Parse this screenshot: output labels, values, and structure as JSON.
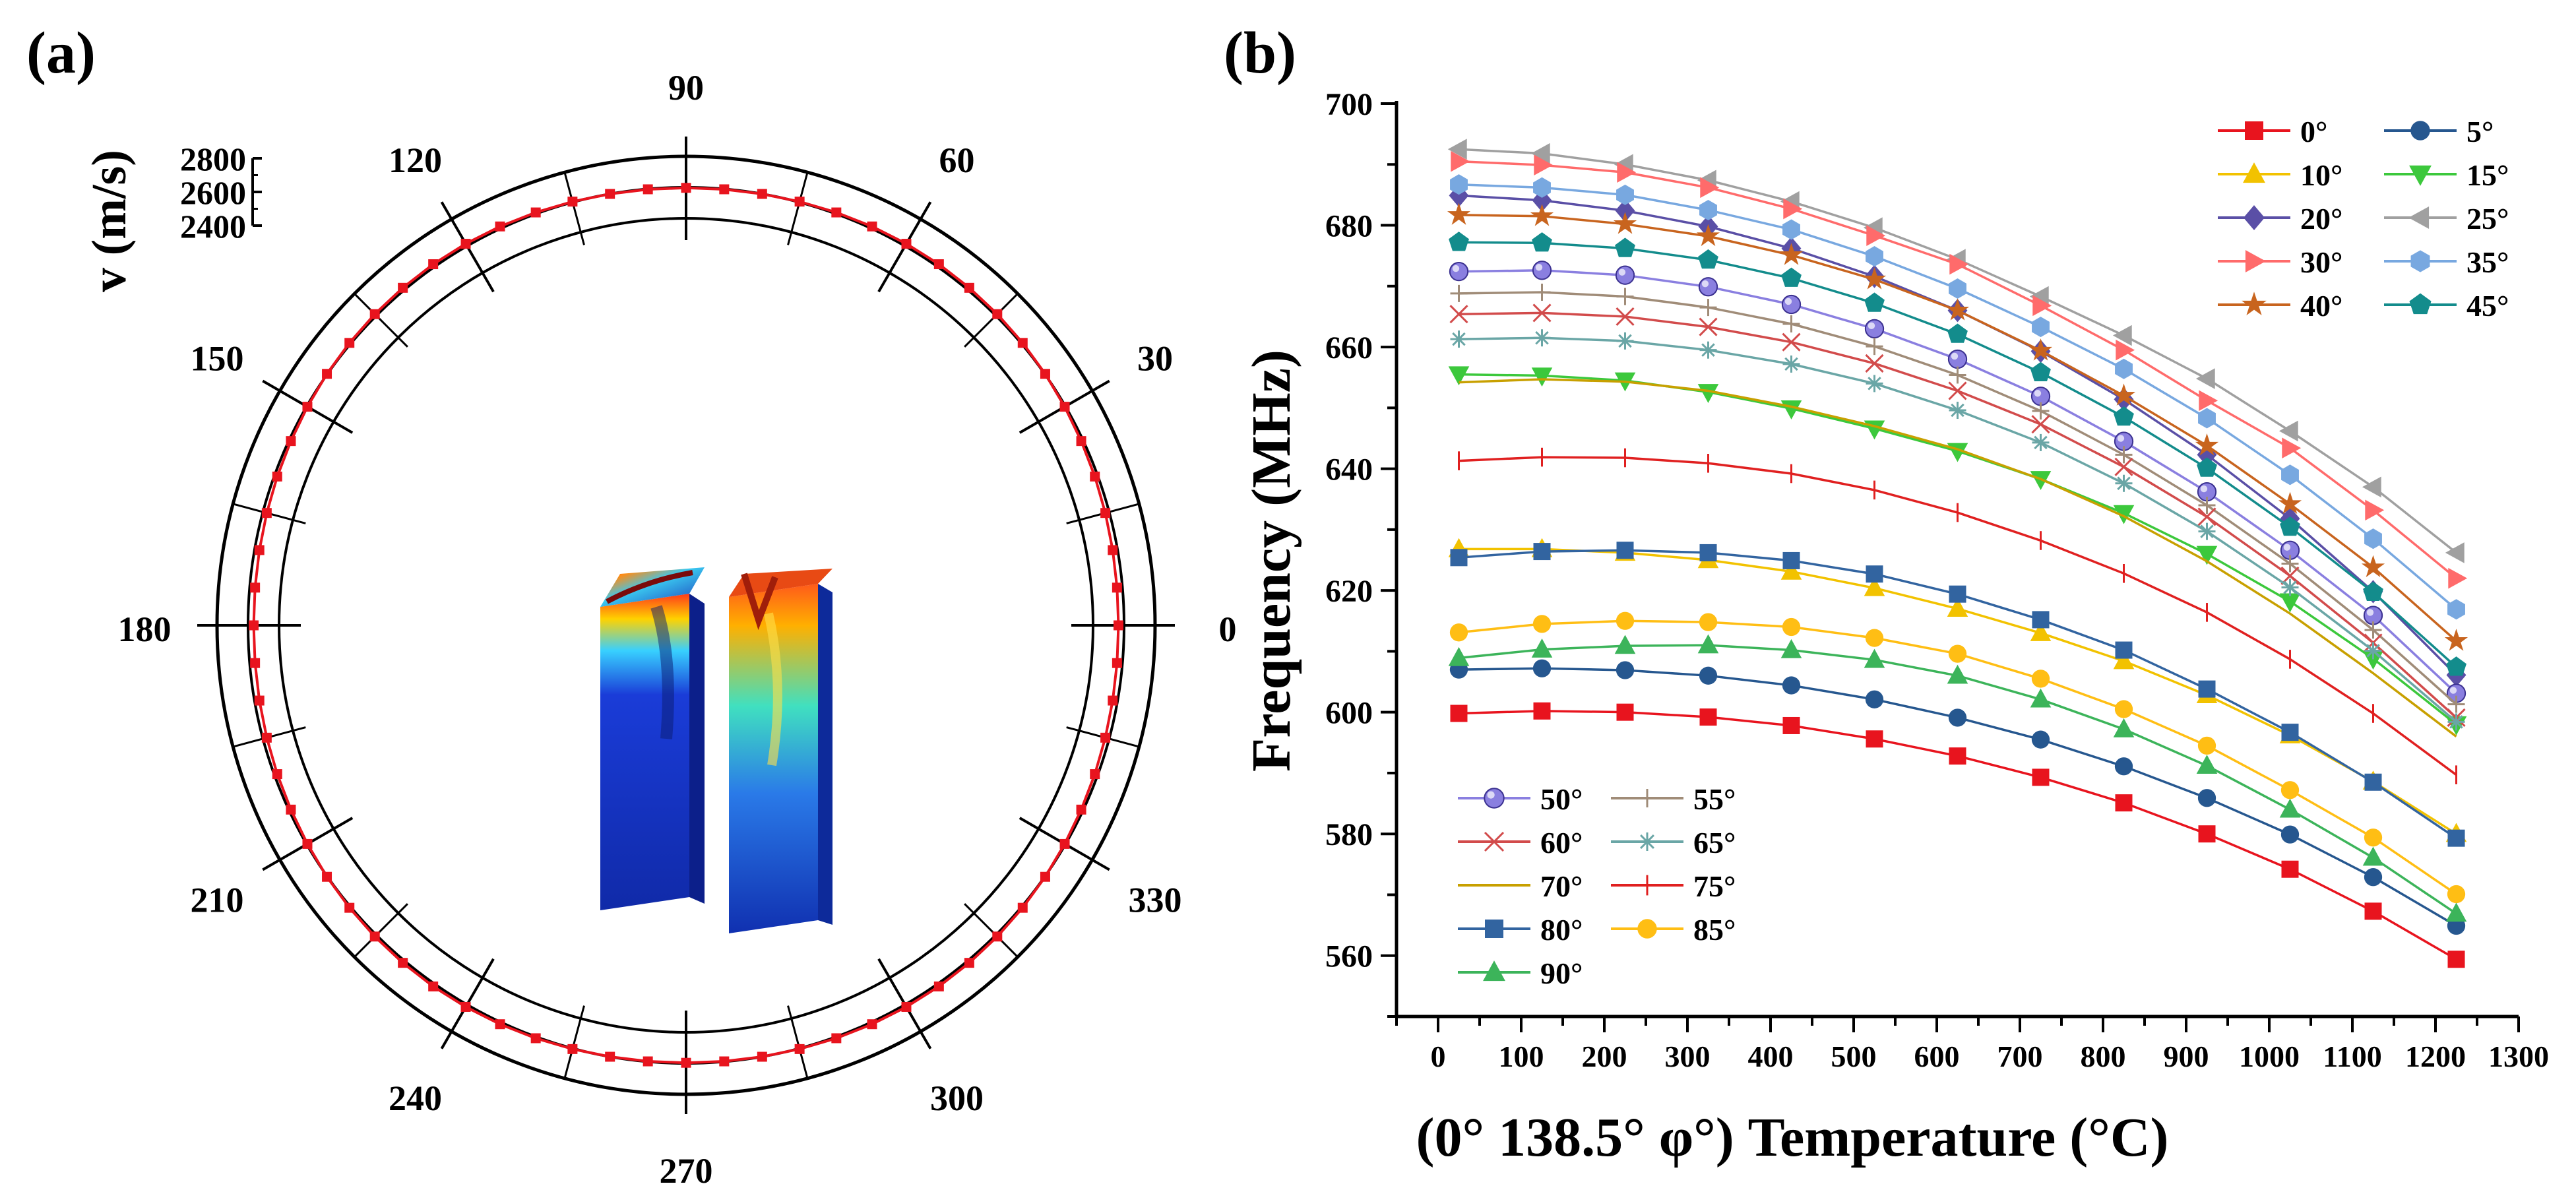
{
  "chart_data": [
    {
      "panel_label": "(a)",
      "type": "polar",
      "radial_axis_title": "v (m/s)",
      "radial_ticks": [
        "2400",
        "2600",
        "2800"
      ],
      "radial_range": [
        2400,
        2800
      ],
      "angle_labels": [
        "0",
        "30",
        "60",
        "90",
        "120",
        "150",
        "180",
        "210",
        "240",
        "270",
        "300",
        "330"
      ],
      "series": {
        "name": "velocity",
        "color": "#e8141e",
        "marker": "square",
        "angle_step_deg": 5,
        "values": [
          2610,
          2612,
          2617,
          2624,
          2632,
          2640,
          2650,
          2660,
          2668,
          2674,
          2678,
          2680,
          2678,
          2674,
          2668,
          2662,
          2657,
          2654,
          2652,
          2654,
          2657,
          2662,
          2668,
          2674,
          2678,
          2680,
          2678,
          2674,
          2668,
          2660,
          2650,
          2640,
          2632,
          2624,
          2617,
          2612,
          2610,
          2612,
          2617,
          2624,
          2632,
          2640,
          2650,
          2660,
          2668,
          2674,
          2678,
          2680,
          2678,
          2674,
          2668,
          2662,
          2657,
          2654,
          2652,
          2654,
          2657,
          2662,
          2668,
          2674,
          2678,
          2680,
          2678,
          2674,
          2668,
          2660,
          2650,
          2640,
          2632,
          2624,
          2617,
          2612
        ]
      },
      "inset": "two 3D column resonator mode shapes"
    },
    {
      "panel_label": "(b)",
      "type": "line",
      "xlabel": "(0° 138.5° φ°) Temperature (°C)",
      "ylabel": "Frequency (MHz)",
      "xlim": [
        -50,
        1300
      ],
      "ylim": [
        550,
        700
      ],
      "xticks": [
        0,
        100,
        200,
        300,
        400,
        500,
        600,
        700,
        800,
        900,
        1000,
        1100,
        1200,
        1300
      ],
      "yticks": [
        560,
        580,
        600,
        620,
        640,
        660,
        680,
        700
      ],
      "x": [
        25,
        125,
        225,
        325,
        425,
        525,
        625,
        725,
        825,
        925,
        1025,
        1125,
        1225
      ],
      "series": [
        {
          "name": "0°",
          "color": "#e8141e",
          "marker": "square",
          "values": [
            599.8,
            600.2,
            600.0,
            599.2,
            597.8,
            595.6,
            592.8,
            589.3,
            585.1,
            580.0,
            574.2,
            567.3,
            559.4
          ]
        },
        {
          "name": "5°",
          "color": "#26578f",
          "marker": "circle",
          "values": [
            607.0,
            607.2,
            606.9,
            606.0,
            604.4,
            602.1,
            599.1,
            595.5,
            591.1,
            585.9,
            579.9,
            572.9,
            564.9
          ]
        },
        {
          "name": "10°",
          "color": "#f2c200",
          "marker": "triangle-up",
          "values": [
            626.8,
            626.8,
            626.2,
            625.0,
            623.1,
            620.4,
            617.0,
            613.0,
            608.4,
            602.8,
            596.2,
            588.6,
            580.0
          ]
        },
        {
          "name": "15°",
          "color": "#3cc83c",
          "marker": "triangle-down",
          "values": [
            655.5,
            655.3,
            654.5,
            652.6,
            649.9,
            646.6,
            642.9,
            638.3,
            632.7,
            626.0,
            618.2,
            608.8,
            598.0
          ]
        },
        {
          "name": "20°",
          "color": "#5a4fa6",
          "marker": "diamond",
          "values": [
            684.9,
            684.1,
            682.4,
            679.8,
            676.2,
            671.6,
            666.0,
            659.3,
            651.4,
            642.3,
            631.8,
            619.8,
            606.1
          ]
        },
        {
          "name": "25°",
          "color": "#a0a0a0",
          "marker": "triangle-left",
          "values": [
            692.5,
            691.8,
            690.0,
            687.4,
            683.9,
            679.6,
            674.4,
            668.3,
            661.9,
            654.8,
            646.2,
            637.0,
            626.2
          ]
        },
        {
          "name": "30°",
          "color": "#ff6b6b",
          "marker": "triangle-right",
          "values": [
            690.5,
            689.9,
            688.7,
            686.2,
            682.7,
            678.3,
            673.6,
            666.8,
            659.5,
            651.2,
            643.4,
            633.2,
            622.0
          ]
        },
        {
          "name": "35°",
          "color": "#78a8e0",
          "marker": "hexagon",
          "values": [
            686.7,
            686.2,
            685.0,
            682.5,
            679.3,
            674.9,
            669.6,
            663.3,
            656.4,
            648.3,
            639.0,
            628.5,
            616.9
          ]
        },
        {
          "name": "40°",
          "color": "#c8641e",
          "marker": "star",
          "values": [
            681.7,
            681.5,
            680.2,
            678.2,
            675.1,
            671.1,
            666.0,
            659.4,
            652.0,
            643.8,
            634.2,
            623.8,
            611.7
          ]
        },
        {
          "name": "45°",
          "color": "#138c8c",
          "marker": "pentagon",
          "values": [
            677.2,
            677.1,
            676.2,
            674.3,
            671.3,
            667.2,
            662.1,
            655.8,
            648.5,
            640.1,
            630.4,
            619.7,
            607.4
          ]
        },
        {
          "name": "50°",
          "color": "#8a7fe0",
          "marker": "sphere",
          "values": [
            672.4,
            672.6,
            671.8,
            669.9,
            667.0,
            663.0,
            658.0,
            651.9,
            644.5,
            636.2,
            626.6,
            615.9,
            603.1
          ]
        },
        {
          "name": "55°",
          "color": "#a08c78",
          "marker": "plus",
          "values": [
            668.8,
            669.0,
            668.3,
            666.5,
            663.8,
            660.1,
            655.4,
            649.5,
            642.3,
            634.0,
            624.4,
            613.5,
            601.3
          ]
        },
        {
          "name": "60°",
          "color": "#d24b4b",
          "marker": "x",
          "values": [
            665.4,
            665.6,
            665.0,
            663.3,
            660.8,
            657.3,
            652.8,
            647.3,
            640.3,
            632.1,
            622.4,
            611.4,
            599.1
          ]
        },
        {
          "name": "65°",
          "color": "#6aa6a6",
          "marker": "asterisk",
          "values": [
            661.3,
            661.5,
            661.0,
            659.5,
            657.2,
            654.0,
            649.6,
            644.3,
            637.6,
            629.7,
            620.5,
            610.1,
            598.4
          ]
        },
        {
          "name": "70°",
          "color": "#c8a000",
          "marker": "none",
          "values": [
            654.2,
            654.7,
            654.3,
            652.8,
            650.2,
            647.0,
            643.2,
            638.3,
            632.2,
            624.8,
            616.2,
            606.4,
            596.0
          ]
        },
        {
          "name": "75°",
          "color": "#e02020",
          "marker": "bar",
          "values": [
            641.3,
            641.9,
            641.8,
            640.9,
            639.2,
            636.5,
            632.8,
            628.2,
            622.8,
            616.4,
            608.7,
            599.8,
            589.7
          ]
        },
        {
          "name": "80°",
          "color": "#3264a0",
          "marker": "square",
          "values": [
            625.4,
            626.4,
            626.6,
            626.2,
            624.9,
            622.7,
            619.4,
            615.2,
            610.2,
            603.8,
            596.7,
            588.5,
            579.3
          ]
        },
        {
          "name": "85°",
          "color": "#ffbe14",
          "marker": "circle",
          "values": [
            613.1,
            614.5,
            615.0,
            614.8,
            614.0,
            612.2,
            609.6,
            605.5,
            600.5,
            594.5,
            587.2,
            579.4,
            570.1
          ]
        },
        {
          "name": "90°",
          "color": "#3cb45a",
          "marker": "triangle-up",
          "values": [
            608.9,
            610.3,
            610.9,
            611.0,
            610.2,
            608.6,
            606.0,
            602.1,
            597.2,
            591.2,
            584.0,
            576.1,
            566.9
          ]
        }
      ],
      "legend_top": [
        "0°",
        "5°",
        "10°",
        "15°",
        "20°",
        "25°",
        "30°",
        "35°",
        "40°",
        "45°"
      ],
      "legend_bottom": [
        "50°",
        "55°",
        "60°",
        "65°",
        "70°",
        "75°",
        "80°",
        "85°",
        "90°"
      ]
    }
  ]
}
